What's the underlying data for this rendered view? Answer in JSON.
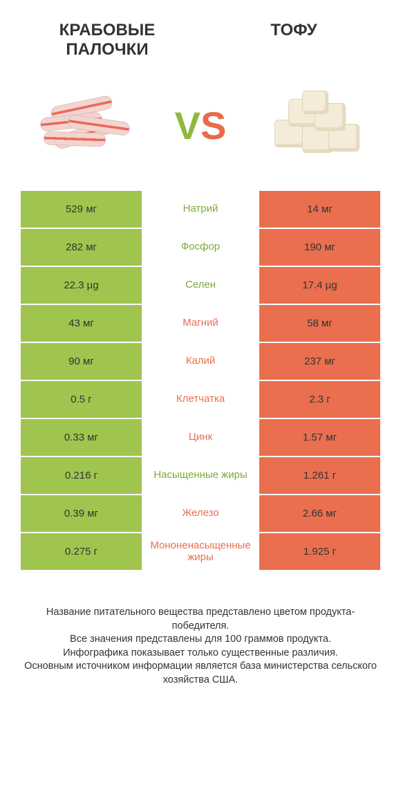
{
  "titles": {
    "left": "КРАБОВЫЕ ПАЛОЧКИ",
    "right": "ТОФУ"
  },
  "vs": {
    "v": "V",
    "s": "S"
  },
  "colors": {
    "green": "#9fc54e",
    "orange": "#e96f4f",
    "txt_green": "#7ea939",
    "txt_orange": "#e96f4f",
    "bg": "#ffffff"
  },
  "rows": [
    {
      "left": "529 мг",
      "mid": "Натрий",
      "right": "14 мг",
      "winner": "left"
    },
    {
      "left": "282 мг",
      "mid": "Фосфор",
      "right": "190 мг",
      "winner": "left"
    },
    {
      "left": "22.3 µg",
      "mid": "Селен",
      "right": "17.4 µg",
      "winner": "left"
    },
    {
      "left": "43 мг",
      "mid": "Магний",
      "right": "58 мг",
      "winner": "right"
    },
    {
      "left": "90 мг",
      "mid": "Калий",
      "right": "237 мг",
      "winner": "right"
    },
    {
      "left": "0.5 г",
      "mid": "Клетчатка",
      "right": "2.3 г",
      "winner": "right"
    },
    {
      "left": "0.33 мг",
      "mid": "Цинк",
      "right": "1.57 мг",
      "winner": "right"
    },
    {
      "left": "0.216 г",
      "mid": "Насыщенные жиры",
      "right": "1.261 г",
      "winner": "left"
    },
    {
      "left": "0.39 мг",
      "mid": "Железо",
      "right": "2.66 мг",
      "winner": "right"
    },
    {
      "left": "0.275 г",
      "mid": "Мононенасыщенные жиры",
      "right": "1.925 г",
      "winner": "right"
    }
  ],
  "footer": {
    "l1": "Название питательного вещества представлено цветом продукта-победителя.",
    "l2": "Все значения представлены для 100 граммов продукта.",
    "l3": "Инфографика показывает только существенные различия.",
    "l4": "Основным источником информации является база министерства сельского хозяйства США."
  }
}
